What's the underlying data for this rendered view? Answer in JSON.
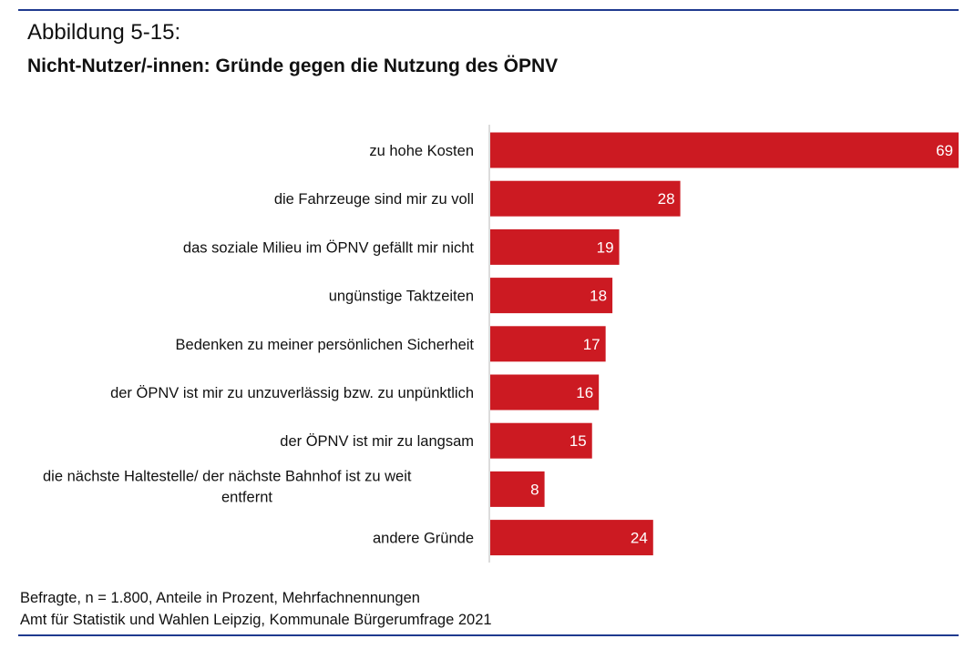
{
  "figure_label": "Abbildung 5-15:",
  "colors": {
    "bar": "#cc1a22",
    "rule": "#1f3a8f",
    "value_label": "#ffffff"
  },
  "chart_data": {
    "type": "bar",
    "orientation": "horizontal",
    "title": "Nicht-Nutzer/-innen: Gründe gegen die Nutzung des ÖPNV",
    "categories": [
      "zu hohe Kosten",
      "die Fahrzeuge sind mir zu voll",
      "das soziale Milieu im ÖPNV gefällt mir nicht",
      "ungünstige Taktzeiten",
      "Bedenken zu meiner persönlichen Sicherheit",
      "der ÖPNV ist mir zu unzuverlässig bzw. zu unpünktlich",
      "der ÖPNV ist mir zu langsam",
      "die nächste Haltestelle/ der nächste Bahnhof ist zu weit entfernt",
      "andere Gründe"
    ],
    "values": [
      69,
      28,
      19,
      18,
      17,
      16,
      15,
      8,
      24
    ],
    "xlim": [
      0,
      69
    ],
    "grid": false,
    "legend": "none",
    "data_labels": true
  },
  "footer": {
    "note": "Befragte, n = 1.800, Anteile in Prozent, Mehrfachnennungen",
    "source": "Amt für Statistik und Wahlen Leipzig, Kommunale Bürgerumfrage 2021"
  }
}
